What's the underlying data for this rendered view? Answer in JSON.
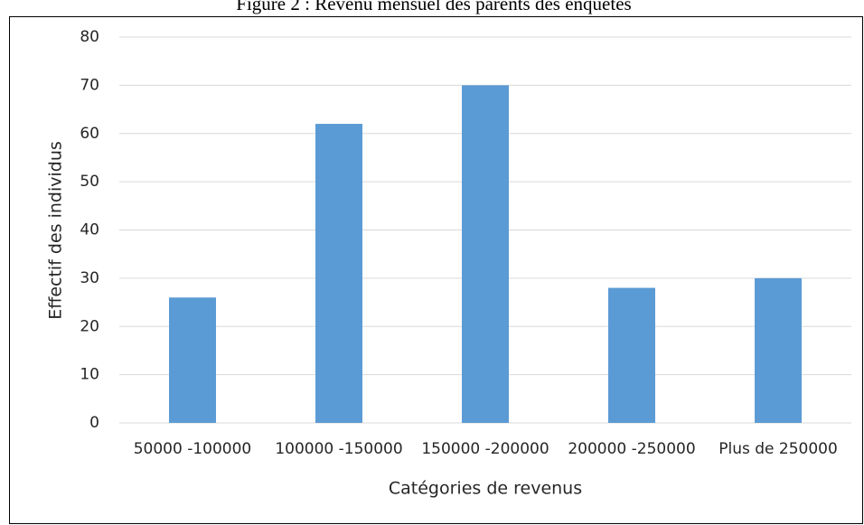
{
  "chart_data": {
    "type": "bar",
    "title": "Figure 2 : Revenu mensuel des parents des enquêtés",
    "x_label": "Catégories de revenus",
    "y_label": "Effectif des individus",
    "categories": [
      "50000 -100000",
      "100000 -150000",
      "150000 -200000",
      "200000 -250000",
      "Plus de 250000"
    ],
    "values": [
      26,
      62,
      70,
      28,
      30
    ],
    "color": "#5b9bd5",
    "ylim": [
      0,
      80
    ],
    "yticks": [
      0,
      10,
      20,
      30,
      40,
      50,
      60,
      70,
      80
    ],
    "grid": true
  }
}
